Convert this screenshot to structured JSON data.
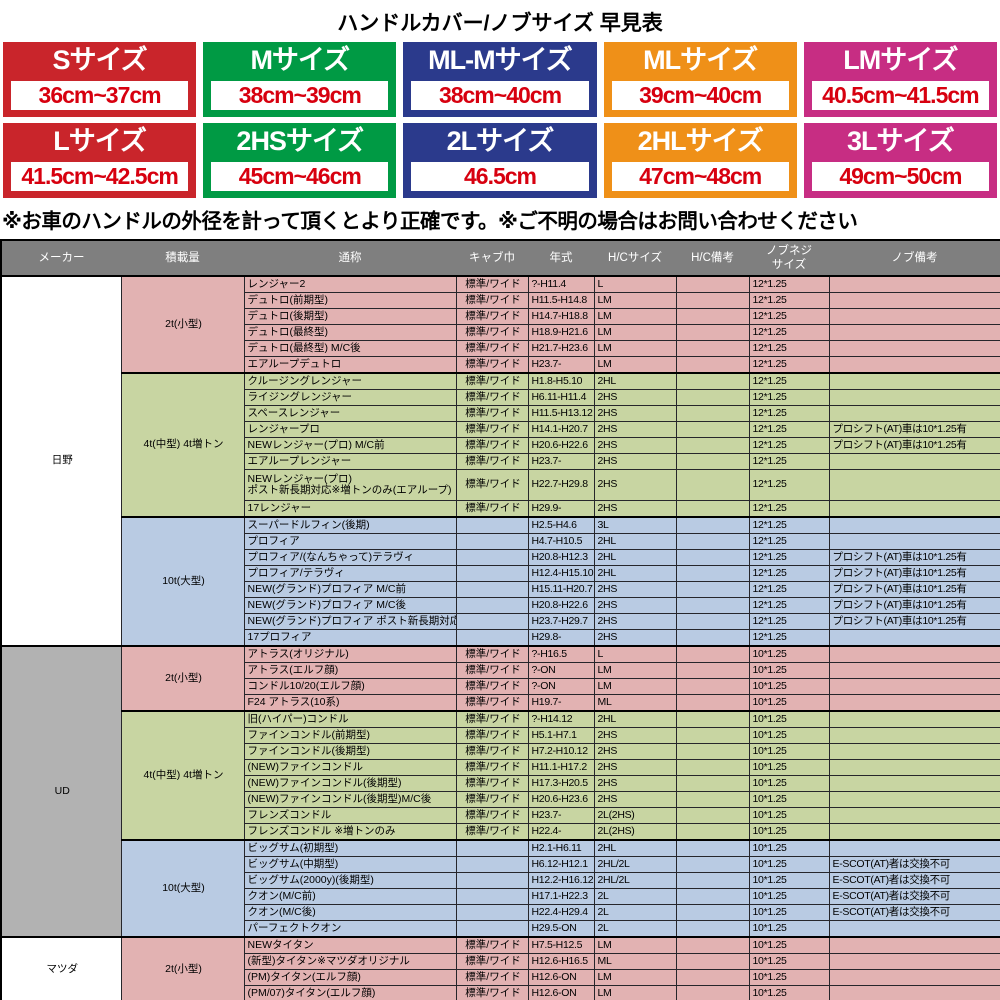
{
  "title": "ハンドルカバー/ノブサイズ 早見表",
  "note": "※お車のハンドルの外径を計って頂くとより正確です。※ご不明の場合はお問い合わせください",
  "colors": {
    "red": "#c9252b",
    "green": "#009a44",
    "navy": "#2b3a8c",
    "orange": "#ef9018",
    "magenta": "#c72d83",
    "cm_text": "#d7000f",
    "header_bg": "#7f7f7f",
    "pink_row": "#e2b2b2",
    "green_row": "#c8d5a2",
    "blue_row": "#b9cbe3",
    "ud_gray": "#b2b2b2",
    "white": "#ffffff"
  },
  "size_badges": [
    {
      "label": "Sサイズ",
      "range": "36cm~37cm",
      "color": "#c9252b"
    },
    {
      "label": "Mサイズ",
      "range": "38cm~39cm",
      "color": "#009a44"
    },
    {
      "label": "ML-Mサイズ",
      "range": "38cm~40cm",
      "color": "#2b3a8c"
    },
    {
      "label": "MLサイズ",
      "range": "39cm~40cm",
      "color": "#ef9018"
    },
    {
      "label": "LMサイズ",
      "range": "40.5cm~41.5cm",
      "color": "#c72d83"
    },
    {
      "label": "Lサイズ",
      "range": "41.5cm~42.5cm",
      "color": "#c9252b"
    },
    {
      "label": "2HSサイズ",
      "range": "45cm~46cm",
      "color": "#009a44"
    },
    {
      "label": "2Lサイズ",
      "range": "46.5cm",
      "color": "#2b3a8c"
    },
    {
      "label": "2HLサイズ",
      "range": "47cm~48cm",
      "color": "#ef9018"
    },
    {
      "label": "3Lサイズ",
      "range": "49cm~50cm",
      "color": "#c72d83"
    }
  ],
  "table": {
    "headers": [
      "メーカー",
      "積載量",
      "通称",
      "キャブ巾",
      "年式",
      "H/Cサイズ",
      "H/C備考",
      "ノブネジ\nサイズ",
      "ノブ備考"
    ],
    "makers": [
      {
        "name": "日野",
        "bg": "#ffffff",
        "groups": [
          {
            "load": "2t(小型)",
            "bg": "#e2b2b2",
            "rows": [
              [
                "レンジャー2",
                "標準/ワイド",
                "?-H11.4",
                "L",
                "",
                "12*1.25",
                ""
              ],
              [
                "デュトロ(前期型)",
                "標準/ワイド",
                "H11.5-H14.8",
                "LM",
                "",
                "12*1.25",
                ""
              ],
              [
                "デュトロ(後期型)",
                "標準/ワイド",
                "H14.7-H18.8",
                "LM",
                "",
                "12*1.25",
                ""
              ],
              [
                "デュトロ(最終型)",
                "標準/ワイド",
                "H18.9-H21.6",
                "LM",
                "",
                "12*1.25",
                ""
              ],
              [
                "デュトロ(最終型) M/C後",
                "標準/ワイド",
                "H21.7-H23.6",
                "LM",
                "",
                "12*1.25",
                ""
              ],
              [
                "エアループデュトロ",
                "標準/ワイド",
                "H23.7-",
                "LM",
                "",
                "12*1.25",
                ""
              ]
            ]
          },
          {
            "load": "4t(中型)\n4t増トン",
            "bg": "#c8d5a2",
            "rows": [
              [
                "クルージングレンジャー",
                "標準/ワイド",
                "H1.8-H5.10",
                "2HL",
                "",
                "12*1.25",
                ""
              ],
              [
                "ライジングレンジャー",
                "標準/ワイド",
                "H6.11-H11.4",
                "2HS",
                "",
                "12*1.25",
                ""
              ],
              [
                "スペースレンジャー",
                "標準/ワイド",
                "H11.5-H13.12",
                "2HS",
                "",
                "12*1.25",
                ""
              ],
              [
                "レンジャープロ",
                "標準/ワイド",
                "H14.1-H20.7",
                "2HS",
                "",
                "12*1.25",
                "プロシフト(AT)車は10*1.25有"
              ],
              [
                "NEWレンジャー(プロ) M/C前",
                "標準/ワイド",
                "H20.6-H22.6",
                "2HS",
                "",
                "12*1.25",
                "プロシフト(AT)車は10*1.25有"
              ],
              [
                "エアループレンジャー",
                "標準/ワイド",
                "H23.7-",
                "2HS",
                "",
                "12*1.25",
                ""
              ],
              [
                "NEWレンジャー(プロ)\nポスト新長期対応※増トンのみ(エアループ)",
                "標準/ワイド",
                "H22.7-H29.8",
                "2HS",
                "",
                "12*1.25",
                ""
              ],
              [
                "17レンジャー",
                "標準/ワイド",
                "H29.9-",
                "2HS",
                "",
                "12*1.25",
                ""
              ]
            ]
          },
          {
            "load": "10t(大型)",
            "bg": "#b9cbe3",
            "rows": [
              [
                "スーパードルフィン(後期)",
                "",
                "H2.5-H4.6",
                "3L",
                "",
                "12*1.25",
                ""
              ],
              [
                "プロフィア",
                "",
                "H4.7-H10.5",
                "2HL",
                "",
                "12*1.25",
                ""
              ],
              [
                "プロフィア/(なんちゃって)テラヴィ",
                "",
                "H20.8-H12.3",
                "2HL",
                "",
                "12*1.25",
                "プロシフト(AT)車は10*1.25有"
              ],
              [
                "プロフィア/テラヴィ",
                "",
                "H12.4-H15.10",
                "2HL",
                "",
                "12*1.25",
                "プロシフト(AT)車は10*1.25有"
              ],
              [
                "NEW(グランド)プロフィア M/C前",
                "",
                "H15.11-H20.7",
                "2HS",
                "",
                "12*1.25",
                "プロシフト(AT)車は10*1.25有"
              ],
              [
                "NEW(グランド)プロフィア M/C後",
                "",
                "H20.8-H22.6",
                "2HS",
                "",
                "12*1.25",
                "プロシフト(AT)車は10*1.25有"
              ],
              [
                "NEW(グランド)プロフィア ポスト新長期対応(エアループ)",
                "",
                "H23.7-H29.7",
                "2HS",
                "",
                "12*1.25",
                "プロシフト(AT)車は10*1.25有"
              ],
              [
                "17プロフィア",
                "",
                "H29.8-",
                "2HS",
                "",
                "12*1.25",
                ""
              ]
            ]
          }
        ]
      },
      {
        "name": "UD",
        "bg": "#b2b2b2",
        "groups": [
          {
            "load": "2t(小型)",
            "bg": "#e2b2b2",
            "rows": [
              [
                "アトラス(オリジナル)",
                "標準/ワイド",
                "?-H16.5",
                "L",
                "",
                "10*1.25",
                ""
              ],
              [
                "アトラス(エルフ顔)",
                "標準/ワイド",
                "?-ON",
                "LM",
                "",
                "10*1.25",
                ""
              ],
              [
                "コンドル10/20(エルフ顔)",
                "標準/ワイド",
                "?-ON",
                "LM",
                "",
                "10*1.25",
                ""
              ],
              [
                "F24 アトラス(10系)",
                "標準/ワイド",
                "H19.7-",
                "ML",
                "",
                "10*1.25",
                ""
              ]
            ]
          },
          {
            "load": "4t(中型)\n4t増トン",
            "bg": "#c8d5a2",
            "rows": [
              [
                "旧(ハイパー)コンドル",
                "標準/ワイド",
                "?-H14.12",
                "2HL",
                "",
                "10*1.25",
                ""
              ],
              [
                "ファインコンドル(前期型)",
                "標準/ワイド",
                "H5.1-H7.1",
                "2HS",
                "",
                "10*1.25",
                ""
              ],
              [
                "ファインコンドル(後期型)",
                "標準/ワイド",
                "H7.2-H10.12",
                "2HS",
                "",
                "10*1.25",
                ""
              ],
              [
                "(NEW)ファインコンドル",
                "標準/ワイド",
                "H11.1-H17.2",
                "2HS",
                "",
                "10*1.25",
                ""
              ],
              [
                "(NEW)ファインコンドル(後期型)",
                "標準/ワイド",
                "H17.3-H20.5",
                "2HS",
                "",
                "10*1.25",
                ""
              ],
              [
                "(NEW)ファインコンドル(後期型)M/C後",
                "標準/ワイド",
                "H20.6-H23.6",
                "2HS",
                "",
                "10*1.25",
                ""
              ],
              [
                "フレンズコンドル",
                "標準/ワイド",
                "H23.7-",
                "2L(2HS)",
                "",
                "10*1.25",
                ""
              ],
              [
                "フレンズコンドル ※増トンのみ",
                "標準/ワイド",
                "H22.4-",
                "2L(2HS)",
                "",
                "10*1.25",
                ""
              ]
            ]
          },
          {
            "load": "10t(大型)",
            "bg": "#b9cbe3",
            "rows": [
              [
                "ビッグサム(初期型)",
                "",
                "H2.1-H6.11",
                "2HL",
                "",
                "10*1.25",
                ""
              ],
              [
                "ビッグサム(中期型)",
                "",
                "H6.12-H12.1",
                "2HL/2L",
                "",
                "10*1.25",
                "E-SCOT(AT)者は交換不可"
              ],
              [
                "ビッグサム(2000y)(後期型)",
                "",
                "H12.2-H16.12",
                "2HL/2L",
                "",
                "10*1.25",
                "E-SCOT(AT)者は交換不可"
              ],
              [
                "クオン(M/C前)",
                "",
                "H17.1-H22.3",
                "2L",
                "",
                "10*1.25",
                "E-SCOT(AT)者は交換不可"
              ],
              [
                "クオン(M/C後)",
                "",
                "H22.4-H29.4",
                "2L",
                "",
                "10*1.25",
                "E-SCOT(AT)者は交換不可"
              ],
              [
                "パーフェクトクオン",
                "",
                "H29.5-ON",
                "2L",
                "",
                "10*1.25",
                ""
              ]
            ]
          }
        ]
      },
      {
        "name": "マツダ",
        "bg": "#ffffff",
        "groups": [
          {
            "load": "2t(小型)",
            "bg": "#e2b2b2",
            "rows": [
              [
                "NEWタイタン",
                "標準/ワイド",
                "H7.5-H12.5",
                "LM",
                "",
                "10*1.25",
                ""
              ],
              [
                "(新型)タイタン※マツダオリジナル",
                "標準/ワイド",
                "H12.6-H16.5",
                "ML",
                "",
                "10*1.25",
                ""
              ],
              [
                "(PM)タイタン(エルフ顔)",
                "標準/ワイド",
                "H12.6-ON",
                "LM",
                "",
                "10*1.25",
                ""
              ],
              [
                "(PM/07)タイタン(エルフ顔)",
                "標準/ワイド",
                "H12.6-ON",
                "LM",
                "",
                "10*1.25",
                ""
              ]
            ]
          }
        ]
      }
    ]
  }
}
